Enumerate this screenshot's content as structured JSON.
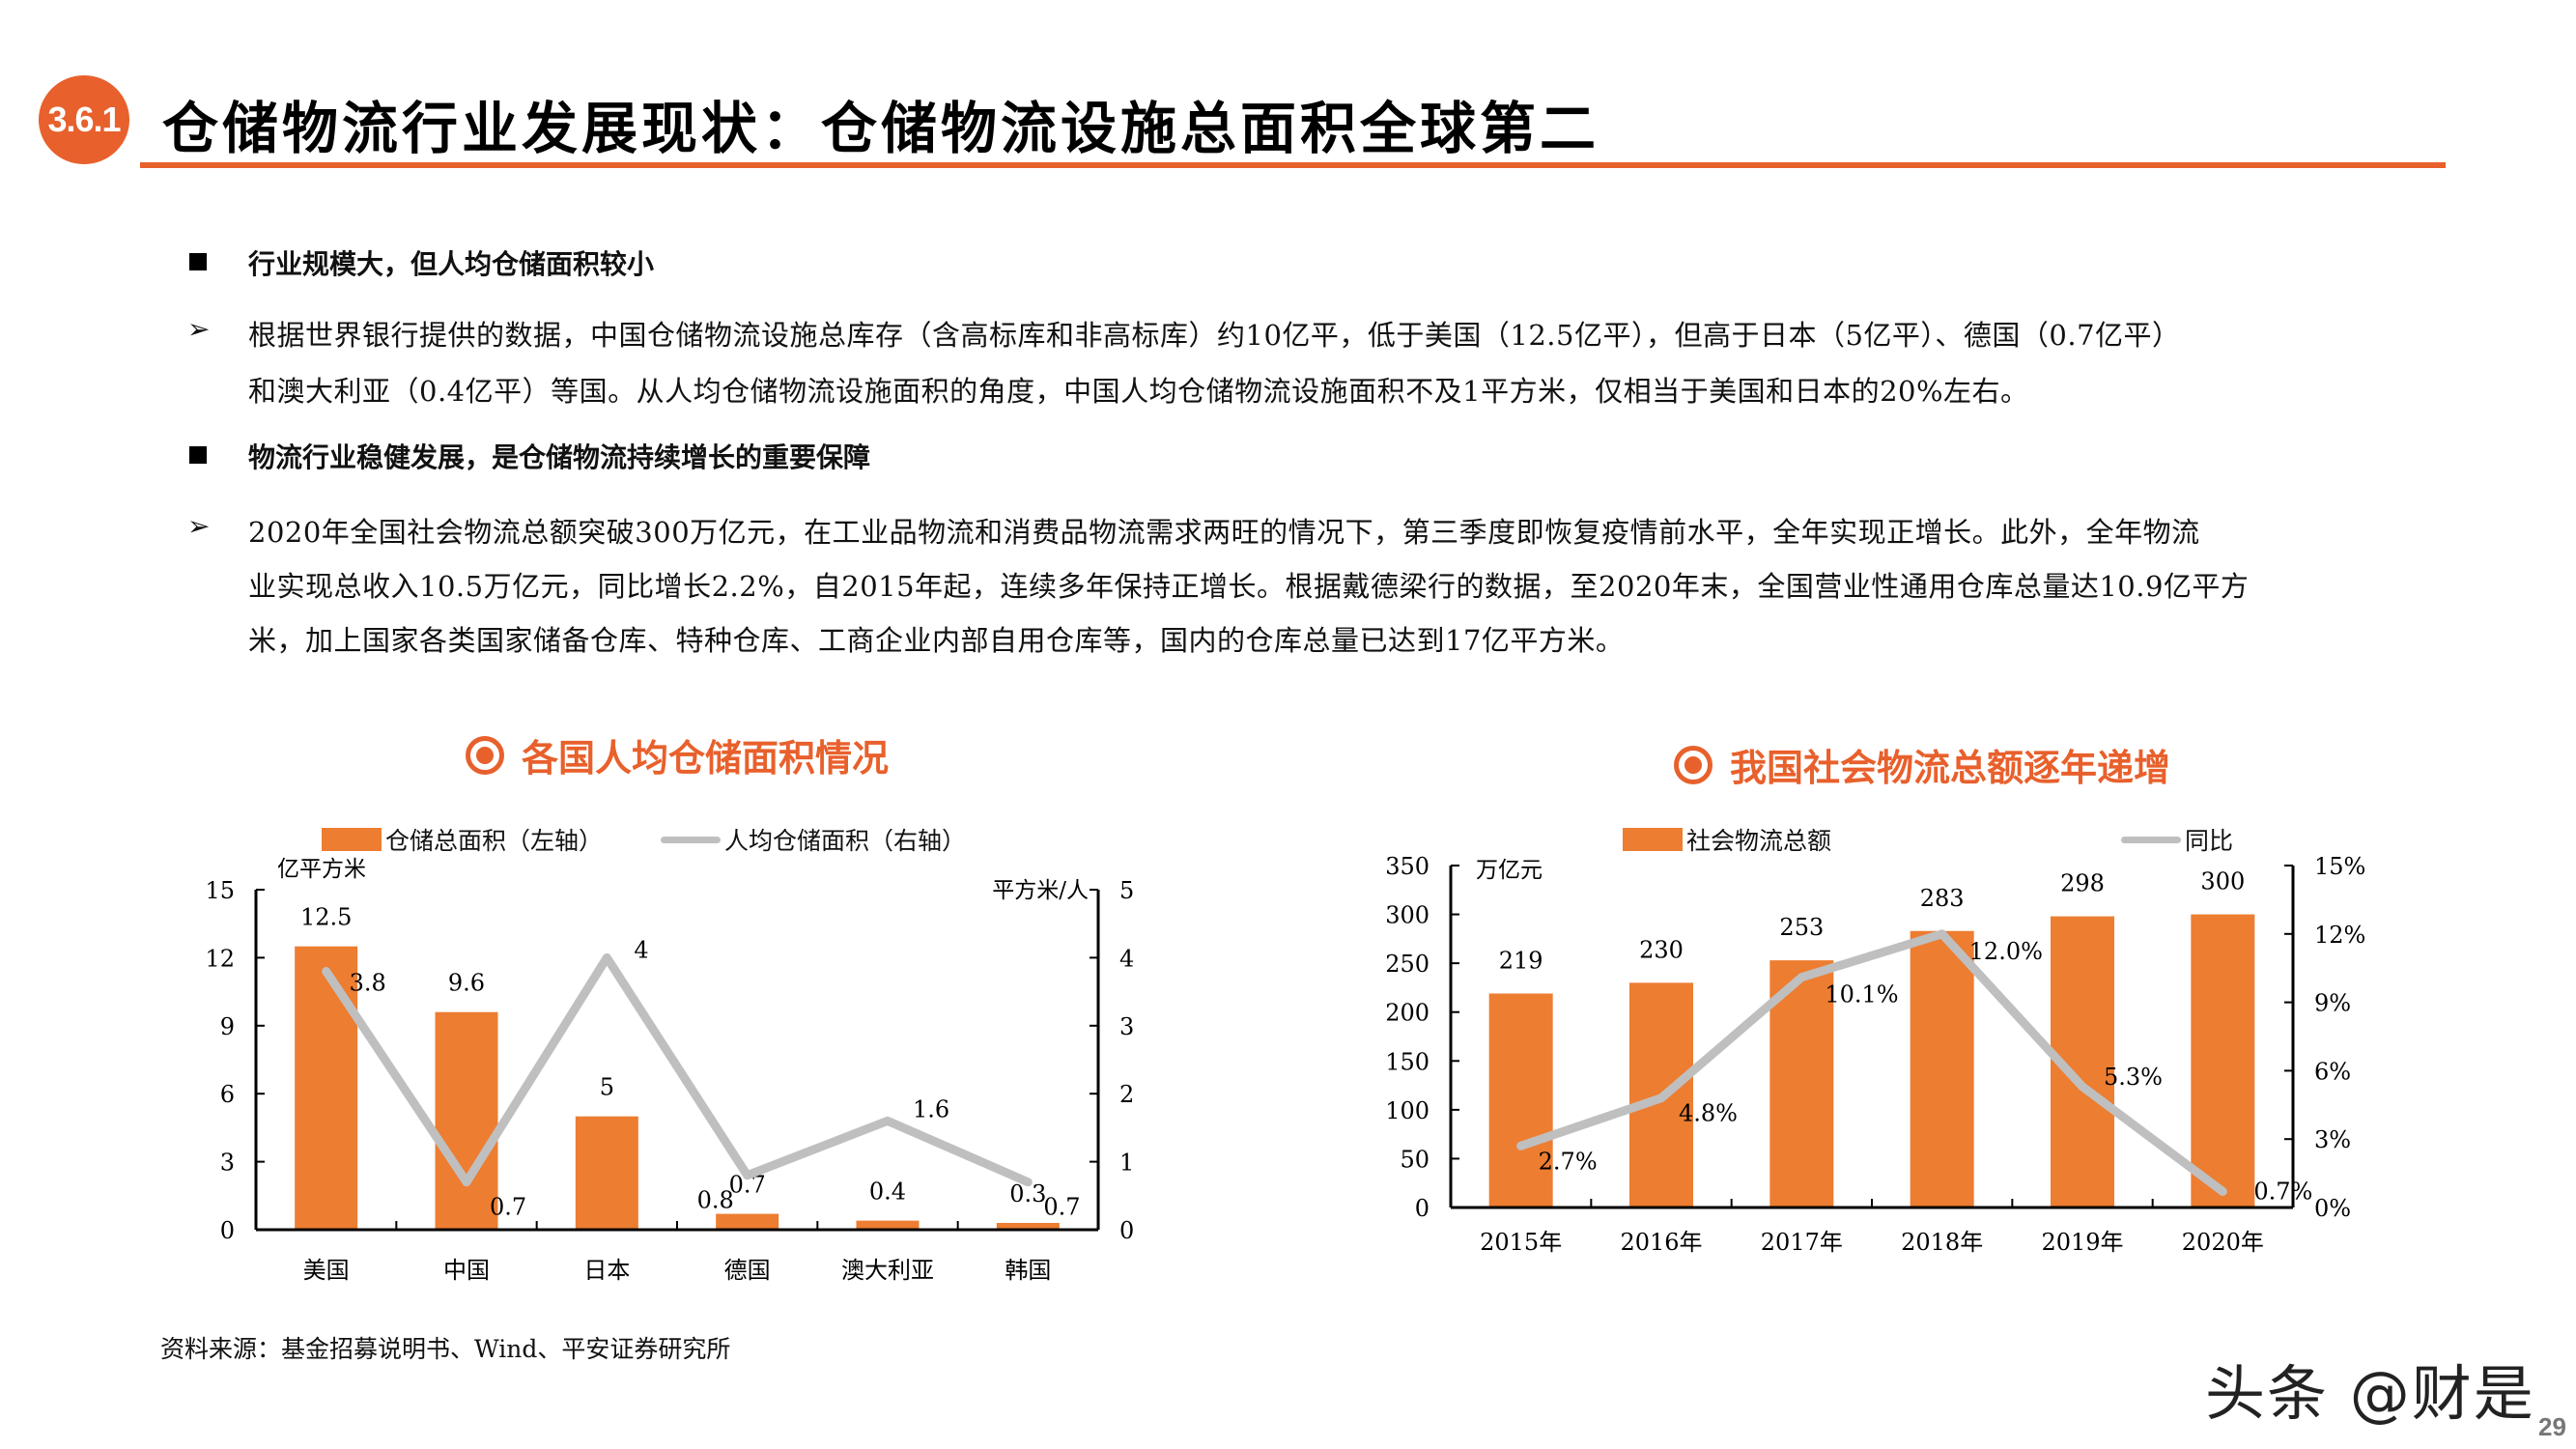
{
  "header": {
    "section_number": "3.6.1",
    "title": "仓储物流行业发展现状：仓储物流设施总面积全球第二",
    "accent_color": "#E8602C"
  },
  "bullets": [
    {
      "heading": "行业规模大，但人均仓储面积较小",
      "lines": [
        "根据世界银行提供的数据，中国仓储物流设施总库存（含高标库和非高标库）约10亿平，低于美国（12.5亿平），但高于日本（5亿平）、德国（0.7亿平）",
        "和澳大利亚（0.4亿平）等国。从人均仓储物流设施面积的角度，中国人均仓储物流设施面积不及1平方米，仅相当于美国和日本的20%左右。"
      ]
    },
    {
      "heading": "物流行业稳健发展，是仓储物流持续增长的重要保障",
      "lines": [
        "2020年全国社会物流总额突破300万亿元，在工业品物流和消费品物流需求两旺的情况下，第三季度即恢复疫情前水平，全年实现正增长。此外，全年物流",
        "业实现总收入10.5万亿元，同比增长2.2%，自2015年起，连续多年保持正增长。根据戴德梁行的数据，至2020年末，全国营业性通用仓库总量达10.9亿平方",
        "米，加上国家各类国家储备仓库、特种仓库、工商企业内部自用仓库等，国内的仓库总量已达到17亿平方米。"
      ]
    }
  ],
  "chart_data": [
    {
      "type": "bar+line",
      "title": "各国人均仓储面积情况",
      "categories": [
        "美国",
        "中国",
        "日本",
        "德国",
        "澳大利亚",
        "韩国"
      ],
      "series": [
        {
          "name": "仓储总面积（左轴）",
          "kind": "bar",
          "axis": "left",
          "values": [
            12.5,
            9.6,
            5,
            0.7,
            0.4,
            0.3
          ],
          "labels": [
            "12.5",
            "9.6",
            "5",
            "0.7",
            "0.4",
            "0.3"
          ],
          "color": "#ED7D31"
        },
        {
          "name": "人均仓储面积（右轴）",
          "kind": "line",
          "axis": "right",
          "values": [
            3.8,
            0.7,
            4,
            0.8,
            1.6,
            0.7
          ],
          "labels": [
            "3.8",
            "0.7",
            "4",
            "0.8",
            "1.6",
            "0.7"
          ],
          "color": "#BFBFBF"
        }
      ],
      "ylabel_left": "亿平方米",
      "ylabel_right": "平方米/人",
      "ylim_left": [
        0,
        15
      ],
      "yticks_left": [
        "0",
        "3",
        "6",
        "9",
        "12",
        "15"
      ],
      "ylim_right": [
        0,
        5
      ],
      "yticks_right": [
        "0",
        "1",
        "2",
        "3",
        "4",
        "5"
      ],
      "grid": false,
      "legend_position": "top"
    },
    {
      "type": "bar+line",
      "title": "我国社会物流总额逐年递增",
      "categories": [
        "2015年",
        "2016年",
        "2017年",
        "2018年",
        "2019年",
        "2020年"
      ],
      "series": [
        {
          "name": "社会物流总额",
          "kind": "bar",
          "axis": "left",
          "values": [
            219,
            230,
            253,
            283,
            298,
            300
          ],
          "labels": [
            "219",
            "230",
            "253",
            "283",
            "298",
            "300"
          ],
          "color": "#ED7D31"
        },
        {
          "name": "同比",
          "kind": "line",
          "axis": "right",
          "values": [
            2.7,
            4.8,
            10.1,
            12.0,
            5.3,
            0.7
          ],
          "labels": [
            "2.7%",
            "4.8%",
            "10.1%",
            "12.0%",
            "5.3%",
            "0.7%"
          ],
          "color": "#BFBFBF"
        }
      ],
      "ylabel_left": "万亿元",
      "ylabel_right": "",
      "ylim_left": [
        0,
        350
      ],
      "yticks_left": [
        "0",
        "50",
        "100",
        "150",
        "200",
        "250",
        "300",
        "350"
      ],
      "ylim_right": [
        0,
        15
      ],
      "yticks_right": [
        "0%",
        "3%",
        "6%",
        "9%",
        "12%",
        "15%"
      ],
      "grid": false,
      "legend_position": "top"
    }
  ],
  "footer": {
    "source": "资料来源：基金招募说明书、Wind、平安证券研究所",
    "watermark": "头条 @财是",
    "page_number": "29"
  }
}
